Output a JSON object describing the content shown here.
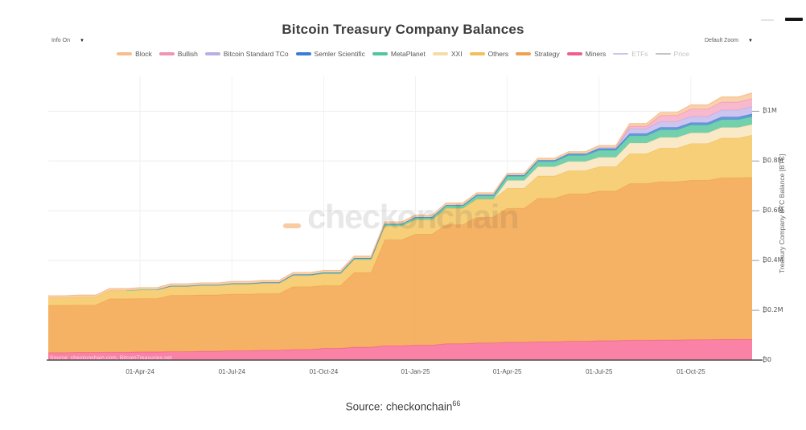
{
  "toolbar": {
    "info_label": "Info On",
    "zoom_label": "Default Zoom",
    "dropdown_arrow": "▼"
  },
  "caption": {
    "text": "Source: checkonchain",
    "superscript": "66"
  },
  "legend": [
    {
      "id": "block",
      "label": "Block",
      "color": "#F6BE8E",
      "active": true
    },
    {
      "id": "bullish",
      "label": "Bullish",
      "color": "#F193B4",
      "active": true
    },
    {
      "id": "bitcoin-standard-tco",
      "label": "Bitcoin Standard TCo",
      "color": "#B9AFE4",
      "active": true
    },
    {
      "id": "semler-scientific",
      "label": "Semler Scientific",
      "color": "#3D7CD6",
      "active": true
    },
    {
      "id": "metaplanet",
      "label": "MetaPlanet",
      "color": "#4FC79E",
      "active": true
    },
    {
      "id": "xxi",
      "label": "XXI",
      "color": "#F4DCA8",
      "active": true
    },
    {
      "id": "others",
      "label": "Others",
      "color": "#F0C05C",
      "active": true
    },
    {
      "id": "strategy",
      "label": "Strategy",
      "color": "#EFA14E",
      "active": true
    },
    {
      "id": "miners",
      "label": "Miners",
      "color": "#EE5F8F",
      "active": true
    },
    {
      "id": "etfs",
      "label": "ETFs",
      "color": "#C9C6EC",
      "active": false
    },
    {
      "id": "price",
      "label": "Price",
      "color": "#C4C4C4",
      "active": false
    }
  ],
  "chart_data": {
    "type": "area",
    "stacked": true,
    "title": "Bitcoin Treasury Company Balances",
    "watermark": "checkonchain",
    "source_note": "Source: checkonchain.com, BitcoinTreasuries.net",
    "categories": [
      "Jan-24",
      "Feb-24",
      "Mar-24",
      "Apr-24",
      "May-24",
      "Jun-24",
      "Jul-24",
      "Aug-24",
      "Sep-24",
      "Oct-24",
      "Nov-24",
      "Dec-24",
      "Jan-25",
      "Feb-25",
      "Mar-25",
      "Apr-25",
      "May-25",
      "Jun-25",
      "Jul-25",
      "Aug-25",
      "Sep-25",
      "Oct-25",
      "Nov-25",
      "Dec-25"
    ],
    "units": "Million BTC",
    "series": [
      {
        "id": "miners",
        "name": "Miners",
        "color": "#EE5F8F",
        "fill": "#F8779E",
        "values": [
          0.03,
          0.031,
          0.032,
          0.033,
          0.034,
          0.036,
          0.038,
          0.04,
          0.043,
          0.047,
          0.052,
          0.058,
          0.06,
          0.066,
          0.069,
          0.072,
          0.074,
          0.076,
          0.078,
          0.08,
          0.081,
          0.082,
          0.083,
          0.084
        ]
      },
      {
        "id": "strategy",
        "name": "Strategy",
        "color": "#EFA14E",
        "fill": "#F5AB57",
        "values": [
          0.19,
          0.19,
          0.214,
          0.214,
          0.226,
          0.226,
          0.227,
          0.227,
          0.252,
          0.252,
          0.3,
          0.425,
          0.446,
          0.478,
          0.506,
          0.538,
          0.576,
          0.592,
          0.601,
          0.629,
          0.636,
          0.64,
          0.649,
          0.65
        ]
      },
      {
        "id": "others",
        "name": "Others",
        "color": "#F0C05C",
        "fill": "#F6CB6E",
        "values": [
          0.03,
          0.032,
          0.033,
          0.035,
          0.036,
          0.038,
          0.04,
          0.042,
          0.045,
          0.048,
          0.052,
          0.056,
          0.058,
          0.066,
          0.072,
          0.08,
          0.09,
          0.093,
          0.098,
          0.12,
          0.135,
          0.148,
          0.16,
          0.17
        ]
      },
      {
        "id": "xxi",
        "name": "XXI",
        "color": "#F4DCA8",
        "fill": "#FAE7C2",
        "values": [
          0,
          0,
          0,
          0,
          0,
          0,
          0,
          0,
          0,
          0,
          0,
          0,
          0,
          0,
          0,
          0.032,
          0.037,
          0.037,
          0.038,
          0.043,
          0.043,
          0.043,
          0.043,
          0.043
        ]
      },
      {
        "id": "metaplanet",
        "name": "MetaPlanet",
        "color": "#4FC79E",
        "fill": "#66CCA6",
        "values": [
          0,
          0,
          0,
          0.001,
          0.001,
          0.001,
          0.002,
          0.002,
          0.002,
          0.003,
          0.004,
          0.006,
          0.008,
          0.01,
          0.013,
          0.017,
          0.021,
          0.025,
          0.028,
          0.03,
          0.031,
          0.032,
          0.032,
          0.032
        ]
      },
      {
        "id": "semler-scientific",
        "name": "Semler Scientific",
        "color": "#3D7CD6",
        "fill": "#5B8EDC",
        "values": [
          0,
          0,
          0,
          0,
          0.001,
          0.001,
          0.001,
          0.001,
          0.002,
          0.002,
          0.002,
          0.002,
          0.003,
          0.003,
          0.004,
          0.004,
          0.005,
          0.006,
          0.007,
          0.008,
          0.009,
          0.009,
          0.01,
          0.01
        ]
      },
      {
        "id": "bitcoin-standard-tco",
        "name": "Bitcoin Standard TCo",
        "color": "#B9AFE4",
        "fill": "#C9C0EE",
        "values": [
          0,
          0,
          0,
          0,
          0,
          0,
          0,
          0,
          0,
          0,
          0,
          0,
          0,
          0,
          0,
          0,
          0,
          0,
          0.004,
          0.02,
          0.024,
          0.025,
          0.028,
          0.03
        ]
      },
      {
        "id": "bullish",
        "name": "Bullish",
        "color": "#F193B4",
        "fill": "#F7B2C9",
        "values": [
          0,
          0,
          0,
          0,
          0,
          0,
          0,
          0,
          0,
          0,
          0,
          0,
          0,
          0,
          0,
          0,
          0,
          0,
          0,
          0.01,
          0.024,
          0.03,
          0.032,
          0.032
        ]
      },
      {
        "id": "block",
        "name": "Block",
        "color": "#F6BE8E",
        "fill": "#F9CDA5",
        "values": [
          0.008,
          0.008,
          0.008,
          0.008,
          0.008,
          0.008,
          0.008,
          0.008,
          0.008,
          0.008,
          0.008,
          0.008,
          0.008,
          0.008,
          0.008,
          0.008,
          0.008,
          0.008,
          0.008,
          0.01,
          0.012,
          0.016,
          0.02,
          0.022
        ]
      }
    ],
    "xaxis": {
      "ticks": [
        {
          "index": 3,
          "label": "01-Apr-24"
        },
        {
          "index": 6,
          "label": "01-Jul-24"
        },
        {
          "index": 9,
          "label": "01-Oct-24"
        },
        {
          "index": 12,
          "label": "01-Jan-25"
        },
        {
          "index": 15,
          "label": "01-Apr-25"
        },
        {
          "index": 18,
          "label": "01-Jul-25"
        },
        {
          "index": 21,
          "label": "01-Oct-25"
        }
      ]
    },
    "yaxis": {
      "title": "Treasury Company BTC Balance [BTC]",
      "range": [
        0,
        1.14
      ],
      "ticks": [
        {
          "v": 0,
          "label": "₿0"
        },
        {
          "v": 0.2,
          "label": "₿0.2M"
        },
        {
          "v": 0.4,
          "label": "₿0.4M"
        },
        {
          "v": 0.6,
          "label": "₿0.6M"
        },
        {
          "v": 0.8,
          "label": "₿0.8M"
        },
        {
          "v": 1.0,
          "label": "₿1M"
        }
      ]
    },
    "legend_position": "top-center",
    "grid": true
  }
}
